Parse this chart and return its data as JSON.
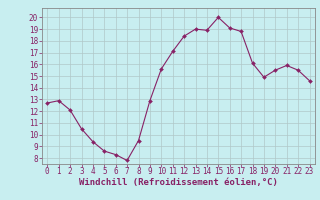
{
  "x": [
    0,
    1,
    2,
    3,
    4,
    5,
    6,
    7,
    8,
    9,
    10,
    11,
    12,
    13,
    14,
    15,
    16,
    17,
    18,
    19,
    20,
    21,
    22,
    23
  ],
  "y": [
    12.7,
    12.9,
    12.1,
    10.5,
    9.4,
    8.6,
    8.3,
    7.8,
    9.5,
    12.9,
    15.6,
    17.1,
    18.4,
    19.0,
    18.9,
    20.0,
    19.1,
    18.8,
    16.1,
    14.9,
    15.5,
    15.9,
    15.5,
    14.6
  ],
  "line_color": "#882266",
  "marker": "D",
  "marker_size": 2.0,
  "bg_color": "#c8eef0",
  "grid_color": "#b0c8c8",
  "ylabel_ticks": [
    8,
    9,
    10,
    11,
    12,
    13,
    14,
    15,
    16,
    17,
    18,
    19,
    20
  ],
  "ylim": [
    7.5,
    20.8
  ],
  "xlim": [
    -0.5,
    23.5
  ],
  "xlabel": "Windchill (Refroidissement éolien,°C)",
  "tick_fontsize": 5.5,
  "xlabel_fontsize": 6.5,
  "label_color": "#882266",
  "spine_color": "#888888"
}
